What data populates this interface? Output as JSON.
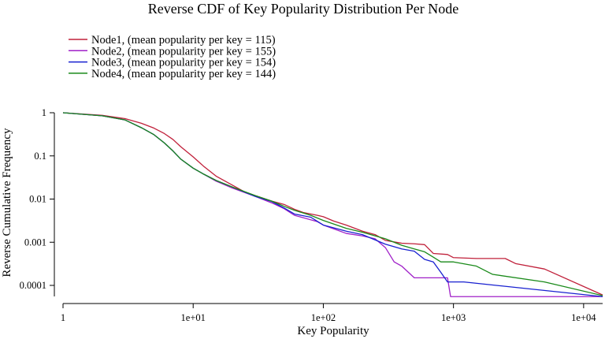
{
  "chart_data": {
    "type": "line",
    "title": "Reverse CDF of Key Popularity Distribution Per Node",
    "xlabel": "Key Popularity",
    "ylabel": "Reverse Cumulative Frequency",
    "x_scale": "log",
    "y_scale": "log",
    "xlim": [
      1,
      14000
    ],
    "ylim": [
      5.5e-05,
      1.3
    ],
    "x_ticks": [
      {
        "value": 1,
        "label": "1"
      },
      {
        "value": 10,
        "label": "1e+01"
      },
      {
        "value": 100,
        "label": "1e+02"
      },
      {
        "value": 1000,
        "label": "1e+03"
      },
      {
        "value": 10000,
        "label": "1e+04"
      }
    ],
    "y_ticks": [
      {
        "value": 1,
        "label": "1"
      },
      {
        "value": 0.1,
        "label": "0.1"
      },
      {
        "value": 0.01,
        "label": "0.01"
      },
      {
        "value": 0.001,
        "label": "0.001"
      },
      {
        "value": 0.0001,
        "label": "0.0001"
      }
    ],
    "grid": false,
    "legend_position": "top-left",
    "series": [
      {
        "name": "Node1, (mean popularity per key = 115)",
        "color": "#c0203a",
        "points": [
          [
            1,
            1.0
          ],
          [
            2,
            0.87
          ],
          [
            3,
            0.73
          ],
          [
            4,
            0.57
          ],
          [
            5,
            0.44
          ],
          [
            6,
            0.33
          ],
          [
            7,
            0.24
          ],
          [
            8,
            0.165
          ],
          [
            10,
            0.095
          ],
          [
            12,
            0.058
          ],
          [
            15,
            0.034
          ],
          [
            20,
            0.021
          ],
          [
            25,
            0.0145
          ],
          [
            30,
            0.012
          ],
          [
            40,
            0.009
          ],
          [
            50,
            0.0075
          ],
          [
            60,
            0.0058
          ],
          [
            70,
            0.0049
          ],
          [
            90,
            0.0042
          ],
          [
            100,
            0.0039
          ],
          [
            120,
            0.0031
          ],
          [
            150,
            0.0025
          ],
          [
            200,
            0.0018
          ],
          [
            250,
            0.0015
          ],
          [
            300,
            0.0011
          ],
          [
            400,
            0.00095
          ],
          [
            500,
            0.00092
          ],
          [
            600,
            0.00088
          ],
          [
            700,
            0.00055
          ],
          [
            900,
            0.00052
          ],
          [
            1000,
            0.00044
          ],
          [
            1500,
            0.00042
          ],
          [
            2500,
            0.00042
          ],
          [
            3000,
            0.00032
          ],
          [
            5000,
            0.00024
          ],
          [
            14000,
            6e-05
          ]
        ]
      },
      {
        "name": "Node2, (mean popularity per key = 155)",
        "color": "#a020c8",
        "points": [
          [
            1,
            1.0
          ],
          [
            2,
            0.85
          ],
          [
            3,
            0.68
          ],
          [
            4,
            0.45
          ],
          [
            5,
            0.31
          ],
          [
            6,
            0.2
          ],
          [
            7,
            0.13
          ],
          [
            8,
            0.085
          ],
          [
            10,
            0.052
          ],
          [
            12,
            0.038
          ],
          [
            15,
            0.026
          ],
          [
            20,
            0.018
          ],
          [
            30,
            0.0115
          ],
          [
            40,
            0.0082
          ],
          [
            50,
            0.006
          ],
          [
            60,
            0.0042
          ],
          [
            70,
            0.0037
          ],
          [
            90,
            0.003
          ],
          [
            100,
            0.0025
          ],
          [
            150,
            0.0016
          ],
          [
            200,
            0.0014
          ],
          [
            250,
            0.0012
          ],
          [
            300,
            0.00075
          ],
          [
            350,
            0.00035
          ],
          [
            400,
            0.00028
          ],
          [
            500,
            0.00015
          ],
          [
            700,
            0.00015
          ],
          [
            900,
            0.00015
          ],
          [
            950,
            5.5e-05
          ],
          [
            14000,
            5.5e-05
          ]
        ]
      },
      {
        "name": "Node3, (mean popularity per key = 154)",
        "color": "#1820d0",
        "points": [
          [
            1,
            1.0
          ],
          [
            2,
            0.85
          ],
          [
            3,
            0.68
          ],
          [
            4,
            0.45
          ],
          [
            5,
            0.31
          ],
          [
            6,
            0.2
          ],
          [
            7,
            0.13
          ],
          [
            8,
            0.085
          ],
          [
            10,
            0.052
          ],
          [
            12,
            0.038
          ],
          [
            15,
            0.027
          ],
          [
            20,
            0.019
          ],
          [
            30,
            0.0115
          ],
          [
            40,
            0.0088
          ],
          [
            50,
            0.0062
          ],
          [
            60,
            0.0045
          ],
          [
            80,
            0.0038
          ],
          [
            100,
            0.0025
          ],
          [
            150,
            0.0018
          ],
          [
            200,
            0.0015
          ],
          [
            300,
            0.0009
          ],
          [
            400,
            0.0007
          ],
          [
            500,
            0.00062
          ],
          [
            600,
            0.0004
          ],
          [
            700,
            0.00035
          ],
          [
            800,
            0.0002
          ],
          [
            900,
            0.00012
          ],
          [
            1200,
            0.00012
          ],
          [
            14000,
            5.5e-05
          ]
        ]
      },
      {
        "name": "Node4, (mean popularity per key = 144)",
        "color": "#1a8a1a",
        "points": [
          [
            1,
            1.0
          ],
          [
            2,
            0.85
          ],
          [
            3,
            0.68
          ],
          [
            4,
            0.45
          ],
          [
            5,
            0.31
          ],
          [
            6,
            0.2
          ],
          [
            7,
            0.13
          ],
          [
            8,
            0.085
          ],
          [
            10,
            0.052
          ],
          [
            12,
            0.038
          ],
          [
            15,
            0.027
          ],
          [
            20,
            0.019
          ],
          [
            30,
            0.012
          ],
          [
            40,
            0.009
          ],
          [
            50,
            0.0068
          ],
          [
            60,
            0.0055
          ],
          [
            80,
            0.0042
          ],
          [
            100,
            0.0032
          ],
          [
            150,
            0.0021
          ],
          [
            200,
            0.0017
          ],
          [
            300,
            0.0012
          ],
          [
            400,
            0.00085
          ],
          [
            500,
            0.0007
          ],
          [
            600,
            0.0006
          ],
          [
            700,
            0.00045
          ],
          [
            800,
            0.00035
          ],
          [
            1000,
            0.00035
          ],
          [
            1500,
            0.00028
          ],
          [
            2000,
            0.00018
          ],
          [
            5000,
            0.00012
          ],
          [
            14000,
            5.8e-05
          ]
        ]
      }
    ]
  }
}
